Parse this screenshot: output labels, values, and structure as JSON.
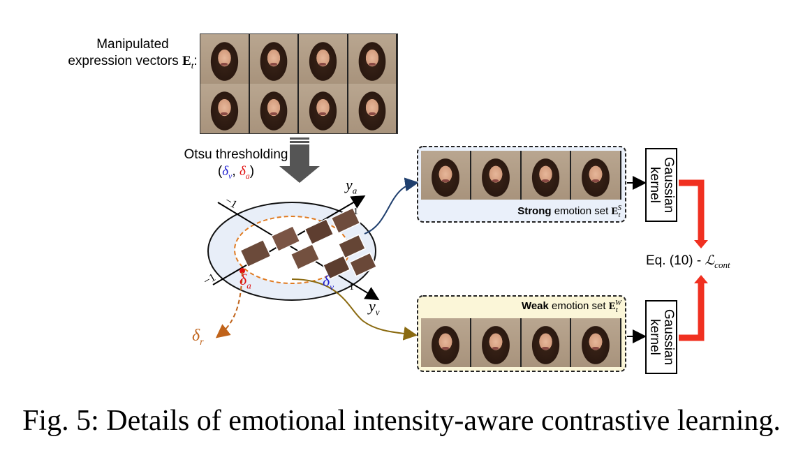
{
  "manipulated": {
    "line1": "Manipulated",
    "line2_prefix": "expression vectors ",
    "symbol": "E",
    "subscript": "t",
    "suffix": ":"
  },
  "otsu": {
    "line1": "Otsu thresholding",
    "open": "(",
    "delta_v": "δ",
    "sub_v": "v",
    "comma": ", ",
    "delta_a": "δ",
    "sub_a": "a",
    "close": ")"
  },
  "axes": {
    "ya_label": "y",
    "ya_sub": "a",
    "yv_label": "y",
    "yv_sub": "v",
    "tick_neg_top": "−1",
    "tick_neg_bottom": "−1",
    "tick_pos_top": "1",
    "tick_pos_bottom": "1"
  },
  "deltas": {
    "delta_a": "δ",
    "delta_a_sub": "a",
    "delta_v": "δ",
    "delta_v_sub": "v",
    "delta_r": "δ",
    "delta_r_sub": "r"
  },
  "strong_set": {
    "bold_word": "Strong",
    "rest": " emotion set ",
    "symbol": "E",
    "sub": "t",
    "sup": "S"
  },
  "weak_set": {
    "bold_word": "Weak",
    "rest": " emotion set ",
    "symbol": "E",
    "sub": "t",
    "sup": "W"
  },
  "kernel_top": {
    "line1": "Gaussian",
    "line2": "kernel"
  },
  "kernel_bottom": {
    "line1": "Gaussian",
    "line2": "kernel"
  },
  "equation": {
    "text": "Eq. (10) - ",
    "loss": "ℒ",
    "loss_sub": "cont"
  },
  "caption": "Fig. 5: Details of emotional intensity-aware contrastive learning.",
  "colors": {
    "blue_delta": "#1f1fd0",
    "red_delta": "#e01010",
    "orange_circle": "#e07a20",
    "strong_curve": "#1f3f6e",
    "weak_curve": "#8a6a10",
    "red_connector": "#f03020",
    "outer_circle_fill": "#e8eef8",
    "strong_box_fill": "#eaf0fa",
    "weak_box_fill": "#fbf6d8",
    "arrow_gray": "#555555"
  }
}
